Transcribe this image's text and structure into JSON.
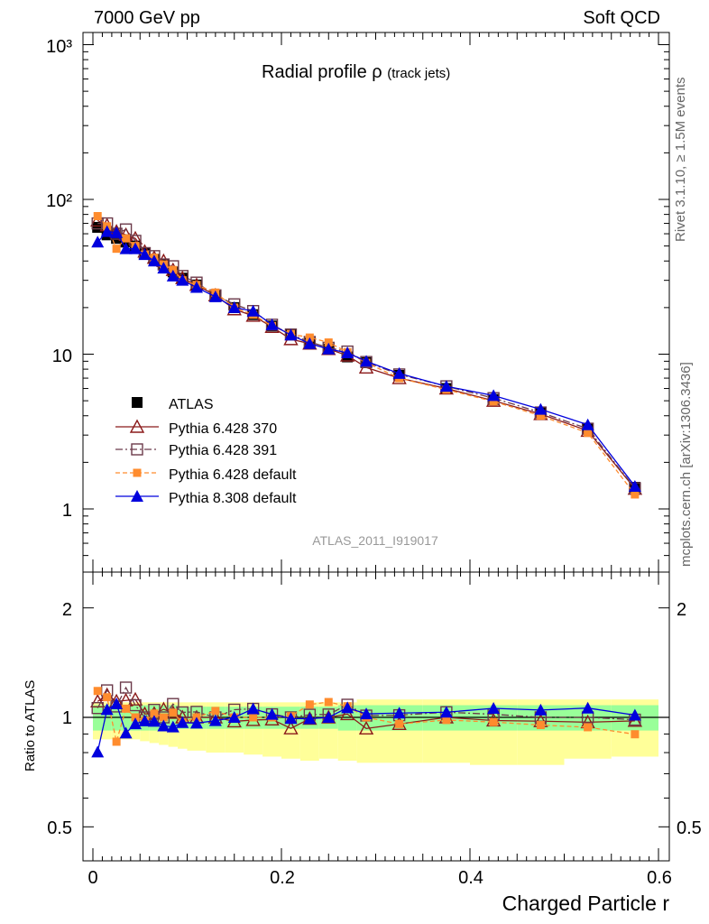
{
  "header": {
    "left": "7000 GeV pp",
    "right": "Soft QCD"
  },
  "sidebar": {
    "rivet": "Rivet 3.1.10, ≥ 1.5M events",
    "mcplots": "mcplots.cern.ch [arXiv:1306.3436]"
  },
  "chart_data": {
    "type": "line",
    "title": "Radial profile ρ",
    "title_suffix": "(track jets)",
    "analysis_id": "ATLAS_2011_I919017",
    "xlabel": "Charged Particle r",
    "ylabel_main": "",
    "ylabel_ratio": "Ratio to ATLAS",
    "xlim": [
      -0.01,
      0.6
    ],
    "ylim_main": [
      0.42,
      1250
    ],
    "ylim_ratio": [
      0.4,
      2.4
    ],
    "log_y_main": true,
    "log_y_ratio": true,
    "x_ticks": [
      "0",
      "0.2",
      "0.4",
      "0.6"
    ],
    "main_y_ticks": [
      "1",
      "10",
      "10²",
      "10³"
    ],
    "ratio_y_ticks": [
      "0.5",
      "1",
      "2"
    ],
    "legend_position": "bottom-left",
    "x": [
      0.005,
      0.015,
      0.025,
      0.035,
      0.045,
      0.055,
      0.065,
      0.075,
      0.085,
      0.095,
      0.11,
      0.13,
      0.15,
      0.17,
      0.19,
      0.21,
      0.23,
      0.25,
      0.27,
      0.29,
      0.325,
      0.375,
      0.425,
      0.475,
      0.525,
      0.575
    ],
    "series": [
      {
        "name": "ATLAS",
        "color": "#000000",
        "marker": "square-filled",
        "dash": "none",
        "values": [
          66,
          59,
          56,
          53,
          50,
          45,
          41,
          38,
          34,
          31,
          28,
          24,
          20,
          18,
          15.2,
          13.4,
          11.8,
          10.8,
          9.6,
          8.8,
          7.3,
          6.0,
          5.1,
          4.2,
          3.3,
          1.38
        ]
      },
      {
        "name": "Pythia 6.428 370",
        "color": "#8b1a1a",
        "marker": "triangle-open",
        "dash": "none",
        "values": [
          73,
          68,
          62,
          59,
          56,
          46,
          42,
          40,
          35,
          31,
          28,
          24,
          19.5,
          17.7,
          15.0,
          12.5,
          11.7,
          10.8,
          9.8,
          8.2,
          7.0,
          6.0,
          5.0,
          4.1,
          3.2,
          1.35
        ]
      },
      {
        "name": "Pythia 6.428 391",
        "color": "#6b3a4a",
        "marker": "square-open",
        "dash": "8,3,2,3",
        "values": [
          70,
          70,
          60,
          64,
          54,
          45,
          43,
          38,
          37,
          32,
          29,
          24,
          21,
          19,
          15.5,
          13.4,
          12.0,
          11.0,
          10.4,
          8.9,
          7.4,
          6.2,
          5.2,
          4.2,
          3.3,
          1.36
        ]
      },
      {
        "name": "Pythia 6.428 default",
        "color": "#ff8c2e",
        "marker": "square-filled-small",
        "dash": "5,3",
        "values": [
          78,
          67,
          48,
          56,
          50,
          44,
          42,
          38,
          35,
          30,
          28,
          25,
          20,
          18,
          15.2,
          13.5,
          12.8,
          11.9,
          10.3,
          8.8,
          7.0,
          5.9,
          4.95,
          4.0,
          3.1,
          1.24
        ]
      },
      {
        "name": "Pythia 8.308 default",
        "color": "#0000dd",
        "marker": "triangle-filled",
        "dash": "none",
        "values": [
          53,
          62,
          61,
          48,
          48,
          44,
          40,
          36,
          32,
          30,
          27,
          23.5,
          20,
          19,
          15.5,
          13.3,
          11.7,
          10.8,
          10.2,
          9.0,
          7.5,
          6.2,
          5.4,
          4.4,
          3.5,
          1.4
        ]
      }
    ],
    "band_edges": [
      0,
      0.01,
      0.02,
      0.03,
      0.04,
      0.05,
      0.06,
      0.07,
      0.08,
      0.09,
      0.1,
      0.12,
      0.14,
      0.16,
      0.18,
      0.2,
      0.22,
      0.24,
      0.26,
      0.28,
      0.3,
      0.35,
      0.4,
      0.45,
      0.5,
      0.55,
      0.6
    ],
    "band_inner": [
      0.08,
      0.08,
      0.08,
      0.08,
      0.08,
      0.08,
      0.08,
      0.08,
      0.08,
      0.07,
      0.07,
      0.07,
      0.07,
      0.07,
      0.07,
      0.07,
      0.07,
      0.07,
      0.08,
      0.08,
      0.08,
      0.08,
      0.08,
      0.08,
      0.08,
      0.08
    ],
    "band_outer_up": [
      0.1,
      0.1,
      0.1,
      0.1,
      0.1,
      0.1,
      0.1,
      0.1,
      0.1,
      0.1,
      0.1,
      0.1,
      0.1,
      0.1,
      0.1,
      0.1,
      0.1,
      0.1,
      0.1,
      0.12,
      0.12,
      0.12,
      0.12,
      0.12,
      0.12,
      0.12
    ],
    "band_outer_down": [
      0.13,
      0.13,
      0.13,
      0.13,
      0.13,
      0.14,
      0.15,
      0.16,
      0.17,
      0.18,
      0.19,
      0.2,
      0.2,
      0.21,
      0.22,
      0.23,
      0.24,
      0.23,
      0.24,
      0.25,
      0.25,
      0.25,
      0.26,
      0.26,
      0.23,
      0.22
    ]
  }
}
